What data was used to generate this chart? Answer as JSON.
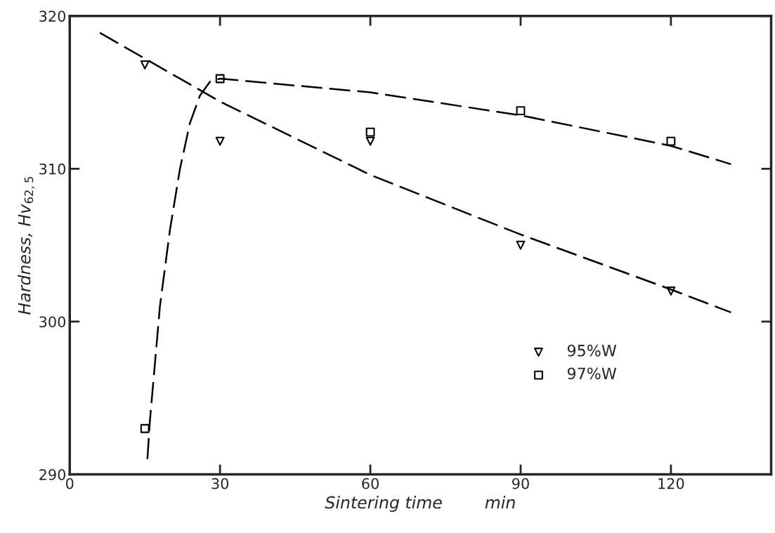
{
  "chart_data": {
    "type": "scatter",
    "xlabel": "Sintering time        min",
    "ylabel": "Hardness, Hv$_{62,5}$",
    "xlim": [
      0,
      140
    ],
    "ylim": [
      290,
      320
    ],
    "xticks": [
      0,
      30,
      60,
      90,
      120
    ],
    "yticks": [
      290,
      300,
      310,
      320
    ],
    "grid": false,
    "legend": "bottom right",
    "series": [
      {
        "name": "95%W",
        "marker": "triangle",
        "color": "#000000",
        "x": [
          15,
          30,
          60,
          90,
          120
        ],
        "values": [
          316.8,
          311.8,
          311.8,
          305,
          302
        ]
      },
      {
        "name": "97%W",
        "marker": "square",
        "color": "#000000",
        "x": [
          15,
          30,
          60,
          90,
          120
        ],
        "values": [
          293,
          315.9,
          312.4,
          313.8,
          311.8
        ]
      },
      {
        "type": "line",
        "line_style": "dashed",
        "color": "#000000",
        "x": [
          6,
          30,
          60,
          90,
          120,
          132
        ],
        "values": [
          318.9,
          314.4,
          309.6,
          305.7,
          302.1,
          300.6
        ]
      },
      {
        "type": "line",
        "line_style": "dashed",
        "color": "#000000",
        "x": [
          15.5,
          16,
          18,
          20,
          22,
          24,
          26,
          28,
          30,
          60,
          90,
          120,
          132
        ],
        "values": [
          291,
          293.5,
          301,
          306,
          310,
          313,
          314.8,
          315.7,
          315.9,
          315,
          313.5,
          311.5,
          310.3
        ]
      }
    ]
  }
}
